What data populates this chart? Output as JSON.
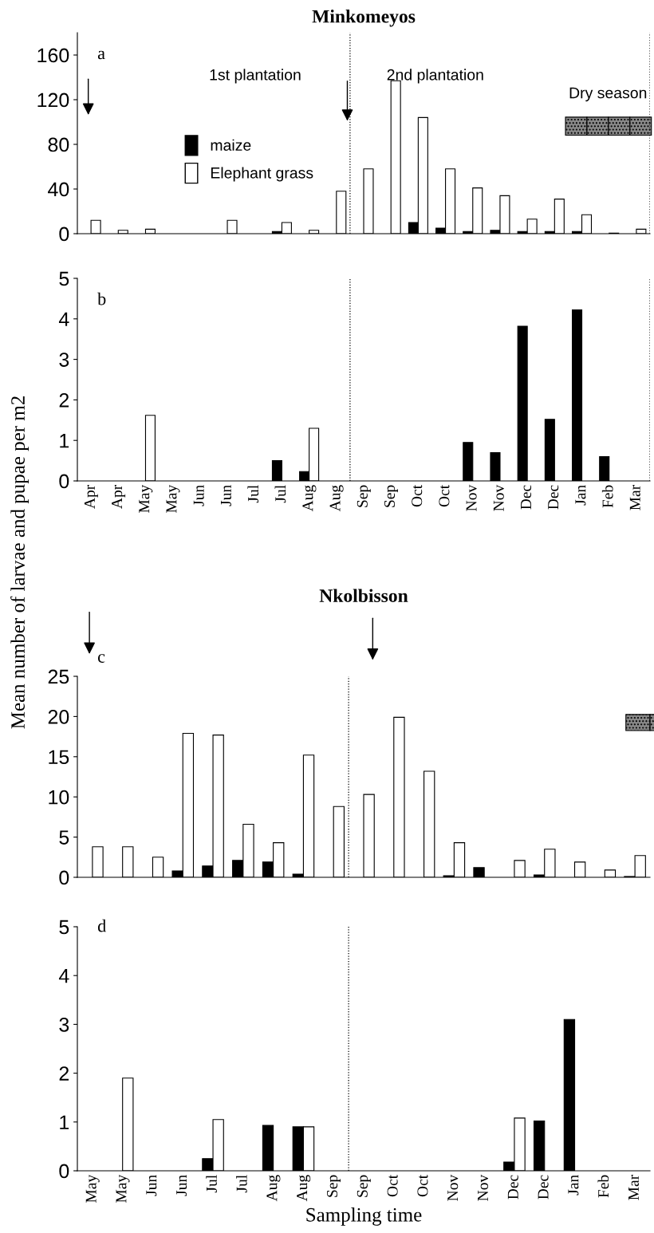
{
  "chart_data": [
    {
      "type": "bar",
      "title": "Minkomeyos",
      "categories": [
        null,
        null,
        null,
        null,
        null,
        null,
        null,
        null,
        null,
        null,
        null,
        null,
        null,
        null,
        null,
        null,
        null,
        null,
        null,
        null,
        null
      ],
      "series": [
        {
          "name": "maize",
          "color": "#000000",
          "values": [
            0,
            0,
            0,
            0,
            0,
            0,
            0,
            2,
            0,
            0,
            0,
            0,
            10,
            5,
            2,
            3,
            2,
            2,
            2,
            0,
            0
          ]
        },
        {
          "name": "Elephant grass",
          "color": "#ffffff",
          "values": [
            12,
            3,
            4,
            0,
            0,
            12,
            0,
            10,
            3,
            38,
            58,
            137,
            104,
            58,
            41,
            34,
            13,
            31,
            17,
            0.5,
            4
          ]
        }
      ],
      "ylim": [
        0,
        180
      ],
      "yticks": [
        0,
        40,
        80,
        120,
        160
      ],
      "tick_labels": "y",
      "legend": "center left",
      "annotations": [
        "a",
        "1st plantation",
        "2nd plantation",
        "Dry season",
        "Mean number of larvae and pupae per m2"
      ]
    },
    {
      "type": "bar",
      "categories": [
        "Apr",
        "Apr",
        "May",
        "May",
        "Jun",
        "Jun",
        "Jul",
        "Jul",
        "Aug",
        "Aug",
        "Sep",
        "Sep",
        "Oct",
        "Oct",
        "Nov",
        "Nov",
        "Dec",
        "Dec",
        "Jan",
        "Feb",
        "Mar"
      ],
      "series": [
        {
          "color": "#000000",
          "values": [
            0,
            0,
            0,
            0,
            0,
            0,
            0,
            0.5,
            0.23,
            0,
            0,
            0,
            0,
            0,
            0.95,
            0.7,
            3.82,
            1.52,
            4.22,
            0.6,
            0
          ]
        },
        {
          "color": "#ffffff",
          "values": [
            0,
            0,
            1.62,
            0,
            0,
            0,
            0,
            0,
            1.3,
            0,
            0,
            0,
            0,
            0,
            0,
            0,
            0,
            0,
            0,
            0,
            0
          ]
        }
      ],
      "ylim": [
        0,
        5
      ],
      "yticks": [
        0,
        1,
        2,
        3,
        4,
        5
      ],
      "annotations": [
        "b"
      ]
    },
    {
      "type": "bar",
      "title": "Nkolbisson",
      "categories": [
        null,
        null,
        null,
        null,
        null,
        null,
        null,
        null,
        null,
        null,
        null,
        null,
        null,
        null,
        null,
        null,
        null,
        null,
        null
      ],
      "series": [
        {
          "color": "#000000",
          "values": [
            0,
            0,
            0,
            0.8,
            1.4,
            2.1,
            1.9,
            0.4,
            0,
            0,
            0,
            0,
            0.2,
            1.2,
            0,
            0.3,
            0,
            0,
            0.1
          ]
        },
        {
          "color": "#ffffff",
          "values": [
            3.8,
            3.8,
            2.5,
            17.9,
            17.7,
            6.6,
            4.3,
            15.2,
            8.8,
            10.3,
            19.9,
            13.2,
            4.3,
            0,
            2.1,
            3.5,
            1.9,
            0.9,
            2.7
          ]
        }
      ],
      "ylim": [
        0,
        25
      ],
      "yticks": [
        0,
        5,
        10,
        15,
        20,
        25
      ],
      "tick_labels": "y",
      "annotations": [
        "c"
      ]
    },
    {
      "type": "bar",
      "xlabel": "Sampling time",
      "categories": [
        "May",
        "May",
        "Jun",
        "Jun",
        "Jul",
        "Jul",
        "Aug",
        "Aug",
        "Sep",
        "Sep",
        "Oct",
        "Oct",
        "Nov",
        "Nov",
        "Dec",
        "Dec",
        "Jan",
        "Feb",
        "Mar"
      ],
      "series": [
        {
          "color": "#000000",
          "values": [
            0,
            0,
            0,
            0,
            0.25,
            0,
            0.93,
            0.9,
            0,
            0,
            0,
            0,
            0,
            0,
            0.18,
            1.02,
            3.1,
            0,
            0
          ]
        },
        {
          "color": "#ffffff",
          "values": [
            0,
            1.9,
            0,
            0,
            1.05,
            0,
            0,
            0.9,
            0,
            0,
            0,
            0,
            0,
            0,
            1.08,
            0,
            0,
            0,
            0
          ]
        }
      ],
      "ylim": [
        0,
        5
      ],
      "yticks": [
        0,
        1,
        2,
        3,
        4,
        5
      ],
      "annotations": [
        "d"
      ]
    }
  ]
}
